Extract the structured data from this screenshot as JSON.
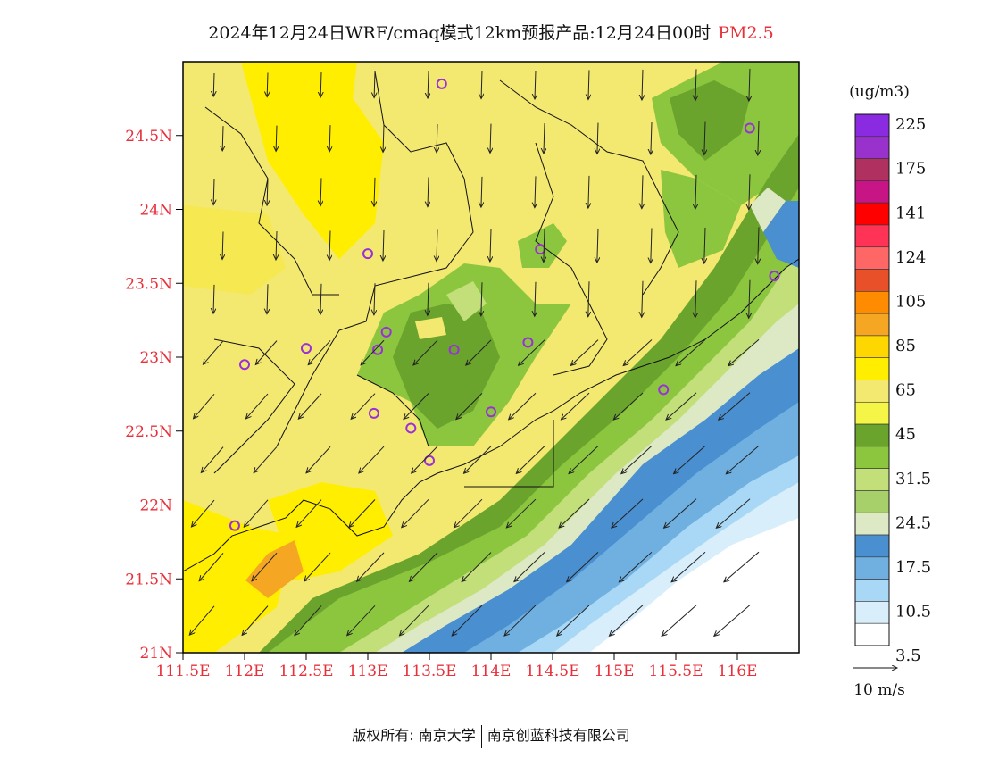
{
  "title": {
    "main": "2024年12月24日WRF/cmaq模式12km预报产品:12月24日00时",
    "pollutant": "PM2.5"
  },
  "map": {
    "lat_ticks": [
      "21N",
      "21.5N",
      "22N",
      "22.5N",
      "23N",
      "23.5N",
      "24N",
      "24.5N"
    ],
    "lon_ticks": [
      "111.5E",
      "112E",
      "112.5E",
      "113E",
      "113.5E",
      "114E",
      "114.5E",
      "115E",
      "115.5E",
      "116E"
    ],
    "tick_color": "#e8303a",
    "wind_flow": "north-northeast to south-southwest"
  },
  "legend": {
    "unit": "(ug/m3)",
    "labels": [
      "225",
      "175",
      "141",
      "124",
      "105",
      "85",
      "65",
      "45",
      "31.5",
      "24.5",
      "17.5",
      "10.5",
      "3.5"
    ],
    "colors_top_to_bottom": [
      "#8a2be2",
      "#9932cc",
      "#b03060",
      "#c71585",
      "#ff0000",
      "#ff3355",
      "#ff6666",
      "#e8502a",
      "#ff8c00",
      "#f5a623",
      "#ffd700",
      "#ffee00",
      "#f3e870",
      "#f5f547",
      "#6aa42c",
      "#8cc63f",
      "#c2df7a",
      "#a8d06a",
      "#dde8c4",
      "#4a8fd0",
      "#6fb0e0",
      "#a8d8f5",
      "#d8eefa",
      "#ffffff"
    ],
    "wind_label": "10 m/s"
  },
  "stations": [
    {
      "lon": 113.6,
      "lat": 24.85
    },
    {
      "lon": 116.1,
      "lat": 24.55
    },
    {
      "lon": 113.0,
      "lat": 23.7
    },
    {
      "lon": 114.4,
      "lat": 23.73
    },
    {
      "lon": 116.3,
      "lat": 23.55
    },
    {
      "lon": 113.15,
      "lat": 23.17
    },
    {
      "lon": 113.08,
      "lat": 23.05
    },
    {
      "lon": 113.7,
      "lat": 23.05
    },
    {
      "lon": 114.3,
      "lat": 23.1
    },
    {
      "lon": 112.5,
      "lat": 23.06
    },
    {
      "lon": 112.0,
      "lat": 22.95
    },
    {
      "lon": 115.4,
      "lat": 22.78
    },
    {
      "lon": 113.05,
      "lat": 22.62
    },
    {
      "lon": 113.35,
      "lat": 22.52
    },
    {
      "lon": 114.0,
      "lat": 22.63
    },
    {
      "lon": 113.5,
      "lat": 22.3
    },
    {
      "lon": 111.92,
      "lat": 21.86
    }
  ],
  "footer": {
    "left": "版权所有: 南京大学",
    "right": "南京创蓝科技有限公司"
  }
}
